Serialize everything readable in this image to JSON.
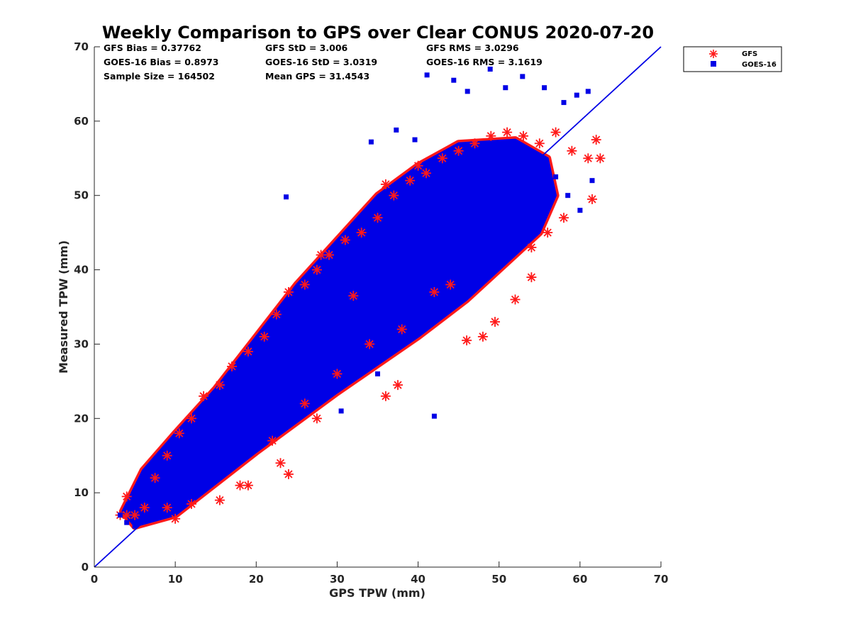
{
  "chart_data": {
    "type": "scatter",
    "title": "Weekly Comparison to GPS over Clear CONUS 2020-07-20",
    "xlabel": "GPS TPW (mm)",
    "ylabel": "Measured TPW (mm)",
    "xlim": [
      0,
      70
    ],
    "ylim": [
      0,
      70
    ],
    "xticks": [
      0,
      10,
      20,
      30,
      40,
      50,
      60,
      70
    ],
    "yticks": [
      0,
      10,
      20,
      30,
      40,
      50,
      60,
      70
    ],
    "grid": false,
    "legend_position": "outside top-right",
    "reference_line": {
      "x": [
        0,
        70
      ],
      "y": [
        0,
        70
      ],
      "color": "#0000e6"
    },
    "stats": [
      [
        "GFS Bias = 0.37762",
        "GFS StD = 3.006",
        "GFS RMS = 3.0296"
      ],
      [
        "GOES-16 Bias = 0.8973",
        "GOES-16 StD = 3.0319",
        "GOES-16 RMS = 3.1619"
      ],
      [
        "Sample Size = 164502",
        "Mean GPS = 31.4543",
        ""
      ]
    ],
    "series": [
      {
        "name": "GFS",
        "marker": "asterisk",
        "color": "#ff1a1a",
        "x": [
          3.2,
          4.0,
          5.0,
          6.2,
          7.5,
          9.0,
          10.5,
          12.0,
          13.5,
          15.5,
          17.0,
          19.0,
          21.0,
          22.5,
          24.0,
          26.0,
          27.5,
          29.0,
          31.0,
          33.0,
          35.0,
          37.0,
          39.0,
          41.0,
          43.0,
          45.0,
          47.0,
          49.0,
          51.0,
          53.0,
          55.0,
          57.0,
          59.0,
          61.0,
          62.5,
          4.0,
          10.0,
          15.5,
          19.0,
          23.0,
          24.0,
          27.5,
          36.0,
          37.5,
          46.0,
          48.0,
          49.5,
          52.0,
          54.0,
          58.0,
          61.5,
          9.0,
          12.0,
          18.0,
          22.0,
          26.0,
          30.0,
          34.0,
          38.0,
          42.0,
          44.0,
          28.0,
          32.0,
          36.0,
          40.0,
          54.0,
          56.0,
          62.0
        ],
        "y": [
          7.0,
          9.5,
          7.0,
          8.0,
          12.0,
          15.0,
          18.0,
          20.0,
          23.0,
          24.5,
          27.0,
          29.0,
          31.0,
          34.0,
          37.0,
          38.0,
          40.0,
          42.0,
          44.0,
          45.0,
          47.0,
          50.0,
          52.0,
          53.0,
          55.0,
          56.0,
          57.0,
          58.0,
          58.5,
          58.0,
          57.0,
          58.5,
          56.0,
          55.0,
          55.0,
          7.0,
          6.5,
          9.0,
          11.0,
          14.0,
          12.5,
          20.0,
          23.0,
          24.5,
          30.5,
          31.0,
          33.0,
          36.0,
          39.0,
          47.0,
          49.5,
          8.0,
          8.5,
          11.0,
          17.0,
          22.0,
          26.0,
          30.0,
          32.0,
          37.0,
          38.0,
          42.0,
          36.5,
          51.5,
          54.0,
          43.0,
          45.0,
          57.5
        ]
      },
      {
        "name": "GOES-16",
        "marker": "square",
        "color": "#0000e6",
        "x": [
          3.2,
          4.0,
          5.0,
          6.0,
          7.5,
          9.0,
          10.5,
          12.0,
          13.5,
          15.0,
          16.5,
          18.0,
          19.5,
          21.0,
          22.5,
          24.0,
          25.5,
          27.0,
          28.5,
          30.0,
          31.5,
          33.0,
          34.5,
          36.0,
          37.5,
          39.0,
          40.5,
          42.0,
          43.5,
          45.0,
          46.5,
          48.0,
          49.5,
          51.0,
          52.5,
          54.0,
          55.5,
          57.0,
          58.5,
          60.0,
          61.5,
          23.7,
          34.2,
          37.3,
          39.6,
          41.1,
          44.4,
          46.1,
          48.9,
          50.8,
          52.9,
          55.6,
          58.0,
          59.6,
          61.0,
          30.5,
          35.0,
          42.0
        ],
        "y": [
          7.0,
          6.0,
          5.5,
          7.0,
          9.0,
          10.0,
          12.5,
          15.0,
          16.0,
          18.5,
          20.0,
          22.0,
          24.0,
          26.0,
          28.0,
          30.0,
          31.5,
          33.0,
          35.0,
          36.0,
          38.0,
          40.0,
          42.0,
          43.0,
          45.0,
          47.0,
          48.5,
          50.0,
          51.0,
          52.0,
          53.0,
          54.5,
          55.0,
          56.0,
          56.5,
          55.0,
          53.0,
          52.5,
          50.0,
          48.0,
          52.0,
          49.8,
          57.2,
          58.8,
          57.5,
          66.2,
          65.5,
          64.0,
          67.0,
          64.5,
          66.0,
          64.5,
          62.5,
          63.5,
          64.0,
          21.0,
          26.0,
          20.3
        ]
      }
    ]
  }
}
